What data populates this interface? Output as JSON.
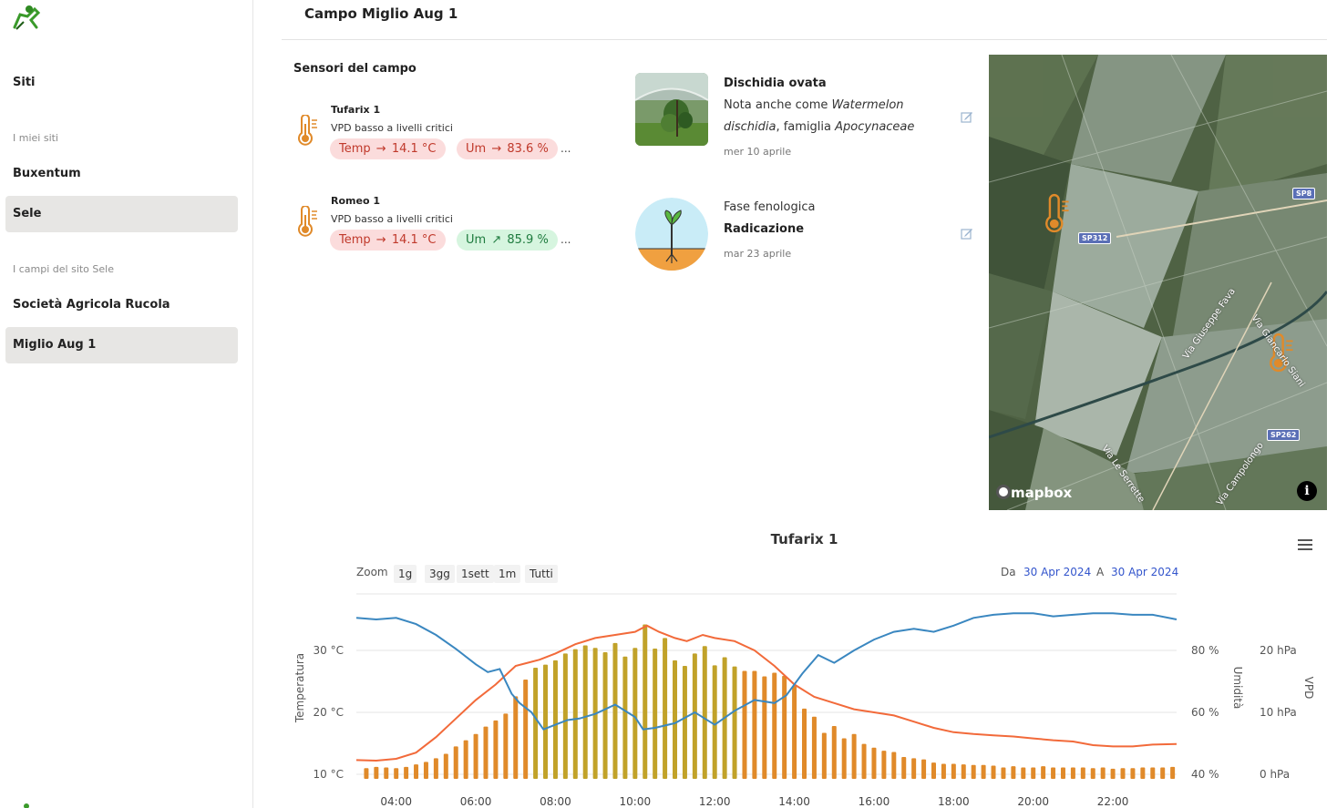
{
  "sidebar": {
    "sites_label": "Siti",
    "my_sites_section": "I miei siti",
    "my_sites": [
      "Buxentum",
      "Sele"
    ],
    "fields_section": "I campi del sito Sele",
    "fields": [
      "Società Agricola Rucola",
      "Miglio Aug 1"
    ]
  },
  "header": {
    "title": "Campo Miglio Aug 1"
  },
  "sensors": {
    "title": "Sensori del campo",
    "items": [
      {
        "name": "Tufarix 1",
        "status": "VPD basso a livelli critici",
        "temp": "14.1 °C",
        "temp_label": "Temp",
        "temp_trend": "→",
        "temp_state": "red",
        "hum": "83.6 %",
        "hum_label": "Um",
        "hum_trend": "→",
        "hum_state": "red",
        "more": "..."
      },
      {
        "name": "Romeo 1",
        "status": "VPD basso a livelli critici",
        "temp": "14.1 °C",
        "temp_label": "Temp",
        "temp_trend": "→",
        "temp_state": "red",
        "hum": "85.9 %",
        "hum_label": "Um",
        "hum_trend": "↗",
        "hum_state": "green",
        "more": "..."
      }
    ]
  },
  "plant": {
    "name": "Dischidia ovata",
    "desc_prefix": "Nota anche come ",
    "desc_common": "Watermelon",
    "desc_common2": "dischidia",
    "desc_mid": ", famiglia ",
    "desc_family": "Apocynaceae",
    "date": "mer 10 aprile"
  },
  "phenology": {
    "label": "Fase fenologica",
    "value": "Radicazione",
    "date": "mar 23 aprile"
  },
  "map": {
    "roads": [
      "SP8",
      "SP312",
      "SP262"
    ],
    "street_names": [
      "Via Giuseppe Fava",
      "Via Giancarlo Siani",
      "Via Le Serrette",
      "Via Campolongo"
    ],
    "attribution": "mapbox",
    "info": "i"
  },
  "chart": {
    "title": "Tufarix 1",
    "zoom_label": "Zoom",
    "zoom_buttons": [
      "1g",
      "3gg",
      "1sett",
      "1m",
      "Tutti"
    ],
    "from_label": "Da",
    "from_date": "30 Apr 2024",
    "to_label": "A",
    "to_date": "30 Apr 2024",
    "colors": {
      "temp": "#f26a3a",
      "humidity": "#3a87c0",
      "vpd_low": "#e08a2a",
      "vpd_high": "#c1a229"
    }
  },
  "chart_data": {
    "type": "line",
    "title": "Tufarix 1",
    "x_ticks": [
      "04:00",
      "06:00",
      "08:00",
      "10:00",
      "12:00",
      "14:00",
      "16:00",
      "18:00",
      "20:00",
      "22:00"
    ],
    "x_range_hours": [
      3.0,
      23.6
    ],
    "axes": {
      "temperature": {
        "label": "Temperatura",
        "ticks": [
          "10 °C",
          "20 °C",
          "30 °C"
        ],
        "range": [
          10,
          30
        ]
      },
      "humidity": {
        "label": "Umidità",
        "ticks": [
          "40 %",
          "60 %",
          "80 %"
        ],
        "range": [
          40,
          80
        ]
      },
      "vpd": {
        "label": "VPD",
        "ticks": [
          "0 hPa",
          "10 hPa",
          "20 hPa"
        ],
        "range": [
          0,
          20
        ]
      }
    },
    "series": [
      {
        "name": "Temperatura",
        "kind": "line",
        "axis": "temperature",
        "x": [
          3.0,
          3.5,
          4.0,
          4.5,
          5.0,
          5.5,
          6.0,
          6.5,
          7.0,
          7.3,
          7.6,
          8.0,
          8.5,
          9.0,
          9.5,
          10.0,
          10.3,
          10.6,
          11.0,
          11.3,
          11.7,
          12.0,
          12.5,
          13.0,
          13.5,
          14.0,
          14.5,
          15.0,
          15.5,
          16.0,
          16.5,
          17.0,
          17.5,
          18.0,
          18.5,
          19.0,
          19.5,
          20.0,
          20.5,
          21.0,
          21.5,
          22.0,
          22.5,
          23.0,
          23.6
        ],
        "y": [
          12.3,
          12.2,
          12.5,
          13.5,
          16.0,
          19.0,
          22.0,
          24.5,
          27.5,
          28.0,
          28.5,
          29.5,
          31.0,
          32.0,
          32.5,
          33.0,
          34.0,
          33.0,
          32.0,
          31.5,
          32.5,
          32.0,
          31.5,
          30.0,
          27.5,
          24.5,
          22.5,
          21.5,
          20.5,
          20.0,
          19.5,
          18.5,
          17.5,
          16.8,
          16.5,
          16.3,
          16.1,
          15.8,
          15.5,
          15.3,
          14.7,
          14.5,
          14.5,
          14.8,
          14.9
        ]
      },
      {
        "name": "Umidità",
        "kind": "line",
        "axis": "humidity",
        "x": [
          3.0,
          3.5,
          4.0,
          4.5,
          5.0,
          5.5,
          6.0,
          6.3,
          6.6,
          6.9,
          7.1,
          7.4,
          7.7,
          8.0,
          8.3,
          8.6,
          9.0,
          9.5,
          10.0,
          10.2,
          10.5,
          11.0,
          11.5,
          12.0,
          12.5,
          13.0,
          13.5,
          13.8,
          14.2,
          14.6,
          15.0,
          15.5,
          16.0,
          16.5,
          17.0,
          17.5,
          18.0,
          18.5,
          19.0,
          19.5,
          20.0,
          20.5,
          21.0,
          21.5,
          22.0,
          22.5,
          23.0,
          23.6
        ],
        "y": [
          90.5,
          90.0,
          90.5,
          88.5,
          85.0,
          80.5,
          75.5,
          73.0,
          74.0,
          66.0,
          63.0,
          60.0,
          54.5,
          56.0,
          57.5,
          58.0,
          59.5,
          62.5,
          58.5,
          54.5,
          55.0,
          56.5,
          60.0,
          56.0,
          60.5,
          64.0,
          63.0,
          65.5,
          72.5,
          78.5,
          76.0,
          80.0,
          83.5,
          86.0,
          87.0,
          86.0,
          88.0,
          90.5,
          91.5,
          92.0,
          92.0,
          91.0,
          91.5,
          92.0,
          92.0,
          91.5,
          91.5,
          90.0
        ]
      },
      {
        "name": "VPD",
        "kind": "column",
        "axis": "vpd",
        "x": [
          3.25,
          3.5,
          3.75,
          4.0,
          4.25,
          4.5,
          4.75,
          5.0,
          5.25,
          5.5,
          5.75,
          6.0,
          6.25,
          6.5,
          6.75,
          7.0,
          7.25,
          7.5,
          7.75,
          8.0,
          8.25,
          8.5,
          8.75,
          9.0,
          9.25,
          9.5,
          9.75,
          10.0,
          10.25,
          10.5,
          10.75,
          11.0,
          11.25,
          11.5,
          11.75,
          12.0,
          12.25,
          12.5,
          12.75,
          13.0,
          13.25,
          13.5,
          13.75,
          14.0,
          14.25,
          14.5,
          14.75,
          15.0,
          15.25,
          15.5,
          15.75,
          16.0,
          16.25,
          16.5,
          16.75,
          17.0,
          17.25,
          17.5,
          17.75,
          18.0,
          18.25,
          18.5,
          18.75,
          19.0,
          19.25,
          19.5,
          19.75,
          20.0,
          20.25,
          20.5,
          20.75,
          21.0,
          21.25,
          21.5,
          21.75,
          22.0,
          22.25,
          22.5,
          22.75,
          23.0,
          23.25,
          23.5
        ],
        "y": [
          1.0,
          1.2,
          1.1,
          1.0,
          1.2,
          1.6,
          2.0,
          2.6,
          3.3,
          4.5,
          5.5,
          6.5,
          7.7,
          8.7,
          9.8,
          12.6,
          15.3,
          17.2,
          17.7,
          18.4,
          19.5,
          20.2,
          20.8,
          20.4,
          19.7,
          21.2,
          19.0,
          20.4,
          24.2,
          20.3,
          22.0,
          18.4,
          17.5,
          19.5,
          20.7,
          17.6,
          18.9,
          17.4,
          16.7,
          16.7,
          15.8,
          16.4,
          15.9,
          14.3,
          10.6,
          9.3,
          6.7,
          7.8,
          5.8,
          6.5,
          4.9,
          4.3,
          3.8,
          3.6,
          2.8,
          2.6,
          2.4,
          1.9,
          1.7,
          1.7,
          1.6,
          1.5,
          1.5,
          1.4,
          1.1,
          1.3,
          1.1,
          1.1,
          1.3,
          1.1,
          1.1,
          1.1,
          1.1,
          1.0,
          1.1,
          0.9,
          1.0,
          1.0,
          1.1,
          1.1,
          1.1,
          1.2
        ]
      }
    ],
    "grid": true,
    "legend": "none"
  }
}
